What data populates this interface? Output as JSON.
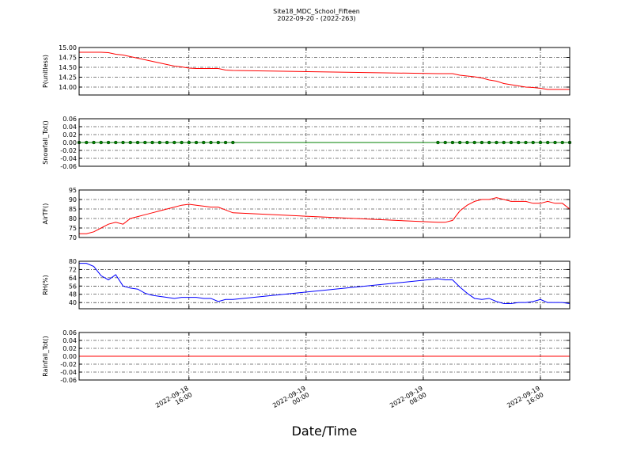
{
  "chart_data": {
    "type": "line",
    "title": "Site18_MDC_School_Fifteen",
    "subtitle": "2022-09-20 - (2022-263)",
    "xlabel": "Date/Time",
    "grid": true,
    "x": [
      "2022-09-18 08:30",
      "2022-09-18 09:00",
      "2022-09-18 09:30",
      "2022-09-18 10:00",
      "2022-09-18 10:30",
      "2022-09-18 11:00",
      "2022-09-18 11:30",
      "2022-09-18 12:00",
      "2022-09-18 12:30",
      "2022-09-18 13:00",
      "2022-09-18 13:30",
      "2022-09-18 14:00",
      "2022-09-18 14:30",
      "2022-09-18 15:00",
      "2022-09-18 15:30",
      "2022-09-18 16:00",
      "2022-09-18 16:30",
      "2022-09-18 17:00",
      "2022-09-18 17:30",
      "2022-09-18 18:00",
      "2022-09-18 18:30",
      "2022-09-18 19:00",
      "2022-09-19 09:00",
      "2022-09-19 09:30",
      "2022-09-19 10:00",
      "2022-09-19 10:30",
      "2022-09-19 11:00",
      "2022-09-19 11:30",
      "2022-09-19 12:00",
      "2022-09-19 12:30",
      "2022-09-19 13:00",
      "2022-09-19 13:30",
      "2022-09-19 14:00",
      "2022-09-19 14:30",
      "2022-09-19 15:00",
      "2022-09-19 15:30",
      "2022-09-19 16:00",
      "2022-09-19 16:30",
      "2022-09-19 17:00",
      "2022-09-19 17:30",
      "2022-09-19 18:00"
    ],
    "xlim": [
      "2022-09-18 08:30",
      "2022-09-19 18:00"
    ],
    "xticks": [
      {
        "value": "2022-09-18 16:00",
        "label": "2022-09-18\n16:00"
      },
      {
        "value": "2022-09-19 00:00",
        "label": "2022-09-19\n00:00"
      },
      {
        "value": "2022-09-19 08:00",
        "label": "2022-09-19\n08:00"
      },
      {
        "value": "2022-09-19 16:00",
        "label": "2022-09-19\n16:00"
      }
    ],
    "panels": [
      {
        "type": "line",
        "ylabel": "P(unitless)",
        "color": "#ff0000",
        "marker": false,
        "ylim": [
          13.8,
          15.0
        ],
        "yticks": [
          {
            "value": 14.0,
            "label": "14.00"
          },
          {
            "value": 14.25,
            "label": "14.25"
          },
          {
            "value": 14.5,
            "label": "14.50"
          },
          {
            "value": 14.75,
            "label": "14.75"
          },
          {
            "value": 15.0,
            "label": "15.00"
          }
        ],
        "values": [
          14.88,
          14.88,
          14.88,
          14.88,
          14.87,
          14.83,
          14.81,
          14.77,
          14.73,
          14.69,
          14.65,
          14.61,
          14.57,
          14.53,
          14.51,
          14.48,
          14.47,
          14.47,
          14.47,
          14.47,
          14.43,
          14.42,
          14.34,
          14.34,
          14.34,
          14.3,
          14.28,
          14.26,
          14.23,
          14.18,
          14.15,
          14.09,
          14.06,
          14.03,
          14.0,
          13.99,
          13.97,
          13.94,
          13.94,
          13.94,
          13.94
        ]
      },
      {
        "type": "line",
        "ylabel": "Snowfall_Tot()",
        "color": "#008000",
        "marker": true,
        "ylim": [
          -0.06,
          0.06
        ],
        "yticks": [
          -0.06,
          -0.04,
          -0.02,
          {
            "value": 0,
            "label": "0.00"
          },
          0.02,
          0.04,
          0.06
        ],
        "values": [
          0,
          0,
          0,
          0,
          0,
          0,
          0,
          0,
          0,
          0,
          0,
          0,
          0,
          0,
          0,
          0,
          0,
          0,
          0,
          0,
          0,
          0,
          0,
          0,
          0,
          0,
          0,
          0,
          0,
          0,
          0,
          0,
          0,
          0,
          0,
          0,
          0,
          0,
          0,
          0,
          0
        ]
      },
      {
        "type": "line",
        "ylabel": "AirTF()",
        "color": "#ff0000",
        "marker": false,
        "ylim": [
          70,
          95
        ],
        "yticks": [
          70,
          75,
          80,
          85,
          90,
          95
        ],
        "values": [
          72,
          72,
          73,
          75,
          77,
          78,
          77,
          80,
          81,
          82,
          83,
          84,
          85,
          86,
          87,
          87.5,
          87,
          86.5,
          86,
          86,
          84.5,
          83,
          78,
          78,
          79,
          84,
          87,
          89,
          90,
          90,
          91,
          90,
          89,
          89,
          89,
          88,
          88,
          89,
          88,
          88,
          85
        ]
      },
      {
        "type": "line",
        "ylabel": "RH(%)",
        "color": "#0000ff",
        "marker": false,
        "ylim": [
          34,
          80
        ],
        "yticks": [
          40,
          48,
          56,
          64,
          72,
          80
        ],
        "values": [
          78,
          78,
          75,
          66,
          62,
          67,
          56,
          54,
          53,
          49,
          47,
          46,
          45,
          44,
          45,
          45,
          45,
          44,
          44,
          41,
          43,
          43,
          63,
          62,
          62,
          55,
          49,
          44,
          43,
          44,
          41,
          39,
          39,
          40,
          40,
          41,
          43,
          40,
          40,
          40,
          39
        ]
      },
      {
        "type": "line",
        "ylabel": "Rainfall_Tot()",
        "color": "#ff0000",
        "marker": false,
        "ylim": [
          -0.06,
          0.06
        ],
        "yticks": [
          -0.06,
          -0.04,
          -0.02,
          {
            "value": 0,
            "label": "0.00"
          },
          0.02,
          0.04,
          0.06
        ],
        "values": [
          0,
          0,
          0,
          0,
          0,
          0,
          0,
          0,
          0,
          0,
          0,
          0,
          0,
          0,
          0,
          0,
          0,
          0,
          0,
          0,
          0,
          0,
          0,
          0,
          0,
          0,
          0,
          0,
          0,
          0,
          0,
          0,
          0,
          0,
          0,
          0,
          0,
          0,
          0,
          0,
          0
        ]
      }
    ]
  }
}
